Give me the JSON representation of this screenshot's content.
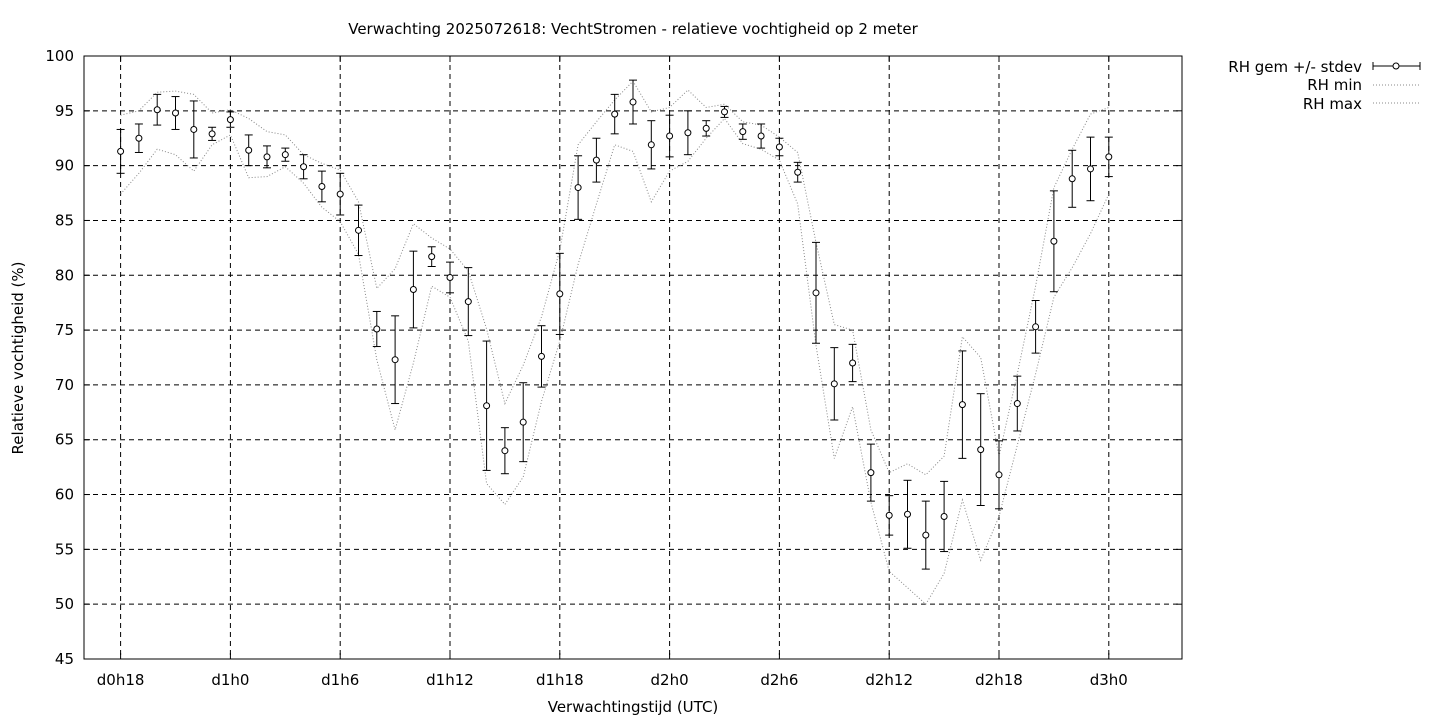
{
  "chart_data": {
    "type": "scatter",
    "title": "Verwachting 2025072618: VechtStromen - relatieve vochtigheid op 2 meter",
    "xlabel": "Verwachtingstijd (UTC)",
    "ylabel": "Relatieve vochtigheid (%)",
    "ylim": [
      45,
      100
    ],
    "yticks": [
      45,
      50,
      55,
      60,
      65,
      70,
      75,
      80,
      85,
      90,
      95,
      100
    ],
    "xlim": [
      16,
      76
    ],
    "xticks": [
      {
        "x": 18,
        "label": "d0h18"
      },
      {
        "x": 24,
        "label": "d1h0"
      },
      {
        "x": 30,
        "label": "d1h6"
      },
      {
        "x": 36,
        "label": "d1h12"
      },
      {
        "x": 42,
        "label": "d1h18"
      },
      {
        "x": 48,
        "label": "d2h0"
      },
      {
        "x": 54,
        "label": "d2h6"
      },
      {
        "x": 60,
        "label": "d2h12"
      },
      {
        "x": 66,
        "label": "d2h18"
      },
      {
        "x": 72,
        "label": "d3h0"
      }
    ],
    "grid": true,
    "legend_position": "outside-top-right",
    "series": [
      {
        "name": "RH gem +/- stdev",
        "style": "points-errorbars",
        "x": [
          18,
          19,
          20,
          21,
          22,
          23,
          24,
          25,
          26,
          27,
          28,
          29,
          30,
          31,
          32,
          33,
          34,
          35,
          36,
          37,
          38,
          39,
          40,
          41,
          42,
          43,
          44,
          45,
          46,
          47,
          48,
          49,
          50,
          51,
          52,
          53,
          54,
          55,
          56,
          57,
          58,
          59,
          60,
          61,
          62,
          63,
          64,
          65,
          66,
          67,
          68,
          69,
          70,
          71,
          72
        ],
        "mean": [
          91.3,
          92.5,
          95.1,
          94.8,
          93.3,
          92.9,
          94.2,
          91.4,
          90.8,
          91.0,
          89.9,
          88.1,
          87.4,
          84.1,
          75.1,
          72.3,
          78.7,
          81.7,
          79.8,
          77.6,
          68.1,
          64.0,
          66.6,
          72.6,
          78.3,
          88.0,
          90.5,
          94.7,
          95.8,
          91.9,
          92.7,
          93.0,
          93.4,
          94.9,
          93.1,
          92.7,
          91.7,
          89.4,
          78.4,
          70.1,
          72.0,
          62.0,
          58.1,
          58.2,
          56.3,
          58.0,
          68.2,
          64.1,
          61.8,
          68.3,
          75.3,
          83.1,
          88.8,
          89.7,
          90.8
        ],
        "stdev": [
          2.0,
          1.3,
          1.4,
          1.5,
          2.6,
          0.6,
          0.7,
          1.4,
          1.0,
          0.6,
          1.1,
          1.4,
          1.9,
          2.3,
          1.6,
          4.0,
          3.5,
          0.9,
          1.4,
          3.1,
          5.9,
          2.1,
          3.6,
          2.8,
          3.7,
          2.9,
          2.0,
          1.8,
          2.0,
          2.2,
          1.9,
          2.0,
          0.7,
          0.5,
          0.7,
          1.1,
          0.8,
          0.9,
          4.6,
          3.3,
          1.7,
          2.6,
          1.8,
          3.1,
          3.1,
          3.2,
          4.9,
          5.1,
          3.1,
          2.5,
          2.4,
          4.6,
          2.6,
          2.9,
          1.8
        ]
      },
      {
        "name": "RH min",
        "style": "dotted-line",
        "x": [
          18,
          19,
          20,
          21,
          22,
          23,
          24,
          25,
          26,
          27,
          28,
          29,
          30,
          31,
          32,
          33,
          34,
          35,
          36,
          37,
          38,
          39,
          40,
          41,
          42,
          43,
          44,
          45,
          46,
          47,
          48,
          49,
          50,
          51,
          52,
          53,
          54,
          55,
          56,
          57,
          58,
          59,
          60,
          61,
          62,
          63,
          64,
          65,
          66,
          67,
          68,
          69,
          70,
          71,
          72
        ],
        "values": [
          87.4,
          89.3,
          91.5,
          91.0,
          89.5,
          91.9,
          92.8,
          88.9,
          89.0,
          89.9,
          88.4,
          86.2,
          84.9,
          81.9,
          72.3,
          65.9,
          72.0,
          79.0,
          78.0,
          74.0,
          61.0,
          59.1,
          61.6,
          68.5,
          74.0,
          81.0,
          86.5,
          91.9,
          91.3,
          86.7,
          89.5,
          90.4,
          92.5,
          94.3,
          92.0,
          91.5,
          90.5,
          86.5,
          73.6,
          63.3,
          68.0,
          59.3,
          53.0,
          51.5,
          50.0,
          52.8,
          59.5,
          54.0,
          58.0,
          64.5,
          71.0,
          78.0,
          80.7,
          83.8,
          87.4
        ]
      },
      {
        "name": "RH max",
        "style": "dotted-line",
        "x": [
          18,
          19,
          20,
          21,
          22,
          23,
          24,
          25,
          26,
          27,
          28,
          29,
          30,
          31,
          32,
          33,
          34,
          35,
          36,
          37,
          38,
          39,
          40,
          41,
          42,
          43,
          44,
          45,
          46,
          47,
          48,
          49,
          50,
          51,
          52,
          53,
          54,
          55,
          56,
          57,
          58,
          59,
          60,
          61,
          62,
          63,
          64,
          65,
          66,
          67,
          68,
          69,
          70,
          71,
          72
        ],
        "values": [
          94.6,
          95.0,
          96.7,
          96.8,
          96.5,
          94.8,
          95.1,
          94.3,
          93.1,
          92.8,
          91.0,
          90.2,
          89.6,
          86.7,
          78.8,
          80.6,
          84.7,
          83.4,
          82.4,
          80.4,
          75.1,
          68.3,
          71.8,
          76.2,
          82.3,
          91.9,
          94.0,
          96.0,
          97.7,
          94.9,
          95.3,
          96.9,
          95.3,
          95.6,
          94.0,
          93.7,
          92.6,
          91.2,
          83.0,
          75.5,
          75.0,
          65.9,
          62.0,
          62.8,
          61.8,
          63.5,
          74.4,
          72.5,
          63.5,
          71.0,
          79.0,
          88.0,
          91.5,
          94.7,
          95.3
        ]
      }
    ]
  }
}
